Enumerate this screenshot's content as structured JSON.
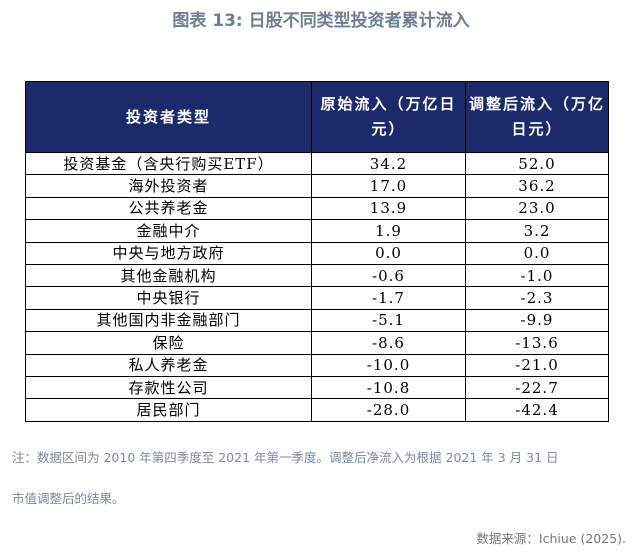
{
  "title": "图表 13: 日股不同类型投资者累计流入",
  "table": {
    "headers": [
      "投资者类型",
      "原始流入（万亿日元）",
      "调整后流入（万亿日元）"
    ],
    "rows": [
      [
        "投资基金（含央行购买ETF）",
        "34.2",
        "52.0"
      ],
      [
        "海外投资者",
        "17.0",
        "36.2"
      ],
      [
        "公共养老金",
        "13.9",
        "23.0"
      ],
      [
        "金融中介",
        "1.9",
        "3.2"
      ],
      [
        "中央与地方政府",
        "0.0",
        "0.0"
      ],
      [
        "其他金融机构",
        "-0.6",
        "-1.0"
      ],
      [
        "中央银行",
        "-1.7",
        "-2.3"
      ],
      [
        "其他国内非金融部门",
        "-5.1",
        "-9.9"
      ],
      [
        "保险",
        "-8.6",
        "-13.6"
      ],
      [
        "私人养老金",
        "-10.0",
        "-21.0"
      ],
      [
        "存款性公司",
        "-10.8",
        "-22.7"
      ],
      [
        "居民部门",
        "-28.0",
        "-42.4"
      ]
    ]
  },
  "note_line1": "注：数据区间为 2010 年第四季度至 2021 年第一季度。调整后净流入为根据 2021 年 3 月 31 日",
  "note_line2": "市值调整后的结果。",
  "source": "数据来源：Ichiue (2025)."
}
